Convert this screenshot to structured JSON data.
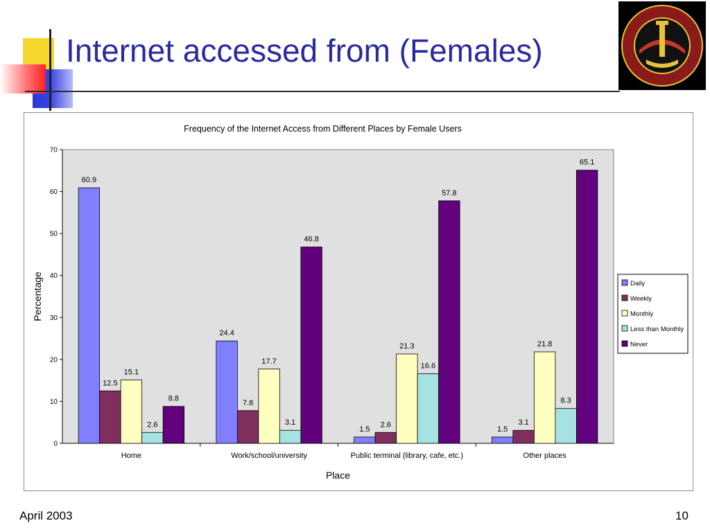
{
  "slide": {
    "title": "Internet accessed from (Females)",
    "footer_date": "April 2003",
    "page_number": "10"
  },
  "logo": {
    "description_icon": "university-seal-icon",
    "ring_color": "#8b1a1a",
    "bg_color": "#000000",
    "accent_color": "#e8c23a"
  },
  "chart_data": {
    "type": "bar",
    "title": "Frequency of the Internet Access from Different Places by Female Users",
    "xlabel": "Place",
    "ylabel": "Percentage",
    "ylim": [
      0,
      70
    ],
    "yticks": [
      0,
      10,
      20,
      30,
      40,
      50,
      60,
      70
    ],
    "categories": [
      "Home",
      "Work/school/university",
      "Public terminal (library, cafe, etc.)",
      "Other places"
    ],
    "series": [
      {
        "name": "Daily",
        "color": "#8080ff",
        "values": [
          60.9,
          24.4,
          1.5,
          1.5
        ]
      },
      {
        "name": "Weekly",
        "color": "#7f2f5e",
        "values": [
          12.5,
          7.8,
          2.6,
          3.1
        ]
      },
      {
        "name": "Monthly",
        "color": "#ffffc0",
        "values": [
          15.1,
          17.7,
          21.3,
          21.8
        ]
      },
      {
        "name": "Less than Monthly",
        "color": "#a6e2e2",
        "values": [
          2.6,
          3.1,
          16.6,
          8.3
        ]
      },
      {
        "name": "Never",
        "color": "#62007e",
        "values": [
          8.8,
          46.8,
          57.8,
          65.1
        ]
      }
    ],
    "legend_position": "right",
    "plot_background": "#e0e0e0",
    "grid": false
  }
}
